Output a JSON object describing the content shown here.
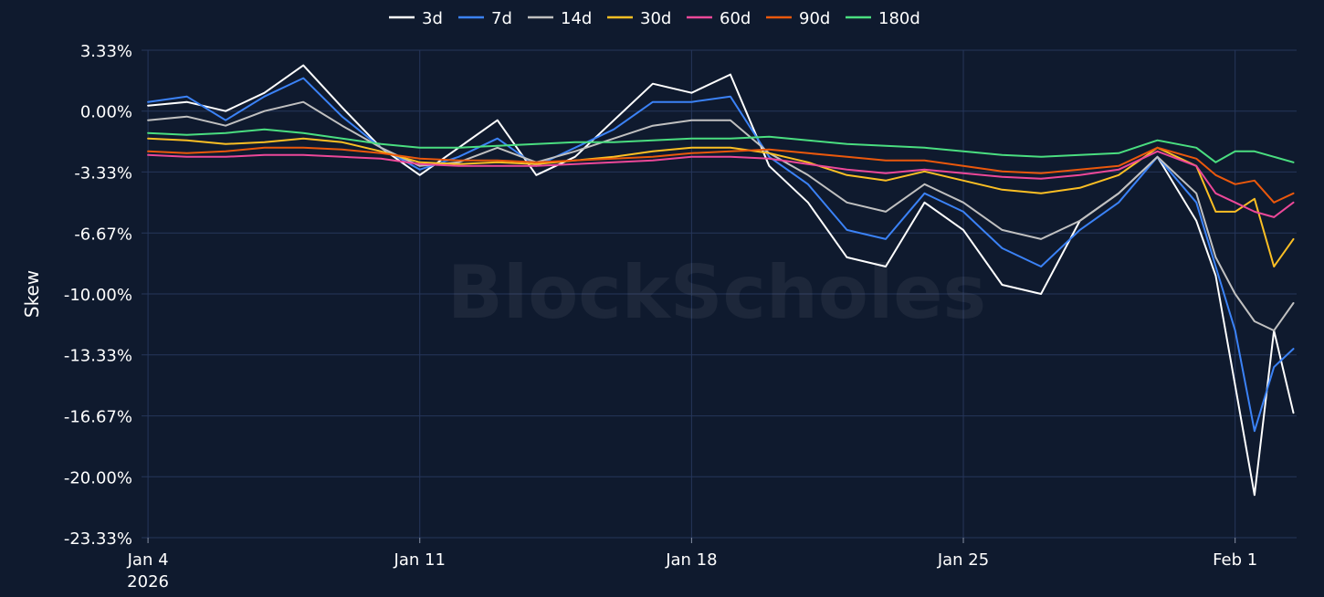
{
  "chart_data": {
    "type": "line",
    "title": "",
    "xlabel": "",
    "ylabel": "Skew",
    "y_unit": "%",
    "ylim": [
      -23.33,
      3.33
    ],
    "yticks": [
      3.33,
      0.0,
      -3.33,
      -6.67,
      -10.0,
      -13.33,
      -16.67,
      -20.0,
      -23.33
    ],
    "ytick_labels": [
      "3.33%",
      "0.00%",
      "-3.33%",
      "-6.67%",
      "-10.00%",
      "-13.33%",
      "-16.67%",
      "-20.00%",
      "-23.33%"
    ],
    "xlim": [
      "2026-01-03T20:00",
      "2026-02-02T14:00"
    ],
    "xticks": [
      {
        "date": "2026-01-04",
        "label": "Jan 4",
        "sublabel": "2026"
      },
      {
        "date": "2026-01-11",
        "label": "Jan 11",
        "sublabel": ""
      },
      {
        "date": "2026-01-18",
        "label": "Jan 18",
        "sublabel": ""
      },
      {
        "date": "2026-01-25",
        "label": "Jan 25",
        "sublabel": ""
      },
      {
        "date": "2026-02-01",
        "label": "Feb 1",
        "sublabel": ""
      }
    ],
    "grid": true,
    "legend_position": "top-center",
    "watermark": "BlockScholes",
    "x_dates": [
      "2026-01-04T00:00",
      "2026-01-05T00:00",
      "2026-01-06T00:00",
      "2026-01-07T00:00",
      "2026-01-08T00:00",
      "2026-01-09T00:00",
      "2026-01-10T00:00",
      "2026-01-11T00:00",
      "2026-01-12T00:00",
      "2026-01-13T00:00",
      "2026-01-14T00:00",
      "2026-01-15T00:00",
      "2026-01-16T00:00",
      "2026-01-17T00:00",
      "2026-01-18T00:00",
      "2026-01-19T00:00",
      "2026-01-20T00:00",
      "2026-01-21T00:00",
      "2026-01-22T00:00",
      "2026-01-23T00:00",
      "2026-01-24T00:00",
      "2026-01-25T00:00",
      "2026-01-26T00:00",
      "2026-01-27T00:00",
      "2026-01-28T00:00",
      "2026-01-29T00:00",
      "2026-01-30T00:00",
      "2026-01-31T00:00",
      "2026-01-31T12:00",
      "2026-02-01T00:00",
      "2026-02-01T12:00",
      "2026-02-02T00:00",
      "2026-02-02T12:00"
    ],
    "series": [
      {
        "name": "3d",
        "color": "#ffffff",
        "values": [
          0.3,
          0.5,
          0.0,
          1.0,
          2.5,
          0.2,
          -2.0,
          -3.5,
          -2.0,
          -0.5,
          -3.5,
          -2.5,
          -0.5,
          1.5,
          1.0,
          2.0,
          -3.0,
          -5.0,
          -8.0,
          -8.5,
          -5.0,
          -6.5,
          -9.5,
          -10.0,
          -6.0,
          -4.5,
          -2.5,
          -6.0,
          -9.0,
          -15.0,
          -21.0,
          -12.0,
          -16.5
        ]
      },
      {
        "name": "7d",
        "color": "#3b82f6",
        "values": [
          0.5,
          0.8,
          -0.5,
          0.8,
          1.8,
          -0.3,
          -2.0,
          -3.2,
          -2.5,
          -1.5,
          -3.0,
          -2.0,
          -1.0,
          0.5,
          0.5,
          0.8,
          -2.5,
          -4.0,
          -6.5,
          -7.0,
          -4.5,
          -5.5,
          -7.5,
          -8.5,
          -6.5,
          -5.0,
          -2.5,
          -5.0,
          -8.5,
          -12.0,
          -17.5,
          -14.0,
          -13.0
        ]
      },
      {
        "name": "14d",
        "color": "#c0c0c0",
        "values": [
          -0.5,
          -0.3,
          -0.8,
          0.0,
          0.5,
          -0.8,
          -2.0,
          -3.0,
          -2.8,
          -2.0,
          -2.8,
          -2.2,
          -1.5,
          -0.8,
          -0.5,
          -0.5,
          -2.3,
          -3.5,
          -5.0,
          -5.5,
          -4.0,
          -5.0,
          -6.5,
          -7.0,
          -6.0,
          -4.5,
          -2.5,
          -4.5,
          -8.0,
          -10.0,
          -11.5,
          -12.0,
          -10.5
        ]
      },
      {
        "name": "30d",
        "color": "#fbbf24",
        "values": [
          -1.5,
          -1.6,
          -1.8,
          -1.7,
          -1.5,
          -1.7,
          -2.2,
          -2.8,
          -2.9,
          -2.8,
          -2.9,
          -2.7,
          -2.5,
          -2.2,
          -2.0,
          -2.0,
          -2.3,
          -2.8,
          -3.5,
          -3.8,
          -3.3,
          -3.8,
          -4.3,
          -4.5,
          -4.2,
          -3.5,
          -2.0,
          -3.0,
          -5.5,
          -5.5,
          -4.8,
          -8.5,
          -7.0
        ]
      },
      {
        "name": "60d",
        "color": "#ec4899",
        "values": [
          -2.4,
          -2.5,
          -2.5,
          -2.4,
          -2.4,
          -2.5,
          -2.6,
          -2.9,
          -3.0,
          -3.0,
          -3.0,
          -2.9,
          -2.8,
          -2.7,
          -2.5,
          -2.5,
          -2.6,
          -2.9,
          -3.2,
          -3.4,
          -3.2,
          -3.4,
          -3.6,
          -3.7,
          -3.5,
          -3.2,
          -2.2,
          -3.0,
          -4.5,
          -5.0,
          -5.5,
          -5.8,
          -5.0
        ]
      },
      {
        "name": "90d",
        "color": "#ea580c",
        "values": [
          -2.2,
          -2.3,
          -2.2,
          -2.0,
          -2.0,
          -2.1,
          -2.3,
          -2.6,
          -2.7,
          -2.7,
          -2.8,
          -2.7,
          -2.6,
          -2.5,
          -2.3,
          -2.2,
          -2.1,
          -2.3,
          -2.5,
          -2.7,
          -2.7,
          -3.0,
          -3.3,
          -3.4,
          -3.2,
          -3.0,
          -2.0,
          -2.6,
          -3.5,
          -4.0,
          -3.8,
          -5.0,
          -4.5
        ]
      },
      {
        "name": "180d",
        "color": "#4ade80",
        "values": [
          -1.2,
          -1.3,
          -1.2,
          -1.0,
          -1.2,
          -1.5,
          -1.8,
          -2.0,
          -2.0,
          -1.9,
          -1.8,
          -1.7,
          -1.7,
          -1.6,
          -1.5,
          -1.5,
          -1.4,
          -1.6,
          -1.8,
          -1.9,
          -2.0,
          -2.2,
          -2.4,
          -2.5,
          -2.4,
          -2.3,
          -1.6,
          -2.0,
          -2.8,
          -2.2,
          -2.2,
          -2.5,
          -2.8
        ]
      }
    ]
  }
}
